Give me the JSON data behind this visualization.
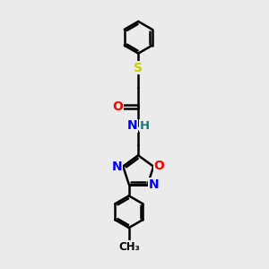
{
  "bg_color": "#ebebeb",
  "bond_color": "#000000",
  "bond_width": 1.8,
  "atom_colors": {
    "S": "#cccc00",
    "O": "#ff0000",
    "N": "#0000ff",
    "H": "#008080",
    "C": "#000000"
  },
  "figsize": [
    3.0,
    3.0
  ],
  "dpi": 100,
  "xlim": [
    -1.6,
    1.6
  ],
  "ylim": [
    -3.5,
    3.5
  ]
}
